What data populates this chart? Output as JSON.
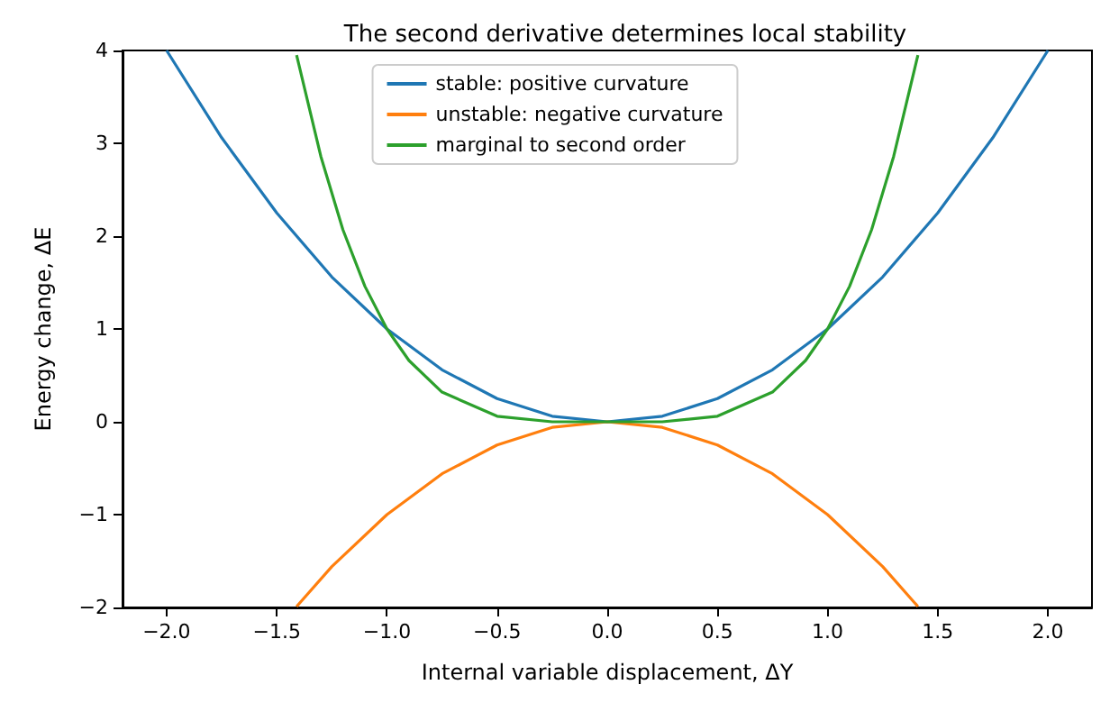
{
  "chart_data": {
    "type": "line",
    "title": "The second derivative determines local stability",
    "xlabel": "Internal variable displacement, ΔY",
    "ylabel": "Energy change, ΔE",
    "series": [
      {
        "name": "stable: positive curvature",
        "color": "#1f77b4",
        "x": [
          -2,
          -1.75,
          -1.5,
          -1.25,
          -1,
          -0.75,
          -0.5,
          -0.25,
          0,
          0.25,
          0.5,
          0.75,
          1,
          1.25,
          1.5,
          1.75,
          2
        ],
        "values": [
          4,
          3.06,
          2.25,
          1.56,
          1,
          0.56,
          0.25,
          0.06,
          0,
          0.06,
          0.25,
          0.56,
          1,
          1.56,
          2.25,
          3.06,
          4
        ]
      },
      {
        "name": "unstable: negative curvature",
        "color": "#ff7f0e",
        "x": [
          -1.41,
          -1.25,
          -1,
          -0.75,
          -0.5,
          -0.25,
          0,
          0.25,
          0.5,
          0.75,
          1,
          1.25,
          1.41
        ],
        "values": [
          -1.99,
          -1.56,
          -1,
          -0.56,
          -0.25,
          -0.06,
          0,
          -0.06,
          -0.25,
          -0.56,
          -1,
          -1.56,
          -1.99
        ]
      },
      {
        "name": "marginal to second order",
        "color": "#2ca02c",
        "x": [
          -1.41,
          -1.3,
          -1.2,
          -1.1,
          -1,
          -0.9,
          -0.75,
          -0.5,
          -0.25,
          0,
          0.25,
          0.5,
          0.75,
          0.9,
          1,
          1.1,
          1.2,
          1.3,
          1.41
        ],
        "values": [
          3.95,
          2.86,
          2.07,
          1.46,
          1,
          0.66,
          0.32,
          0.06,
          0,
          0,
          0,
          0.06,
          0.32,
          0.66,
          1,
          1.46,
          2.07,
          2.86,
          3.95
        ]
      }
    ],
    "xlim": [
      -2.2,
      2.2
    ],
    "ylim": [
      -2,
      4
    ],
    "xticks": [
      {
        "value": -2,
        "label": "−2.0"
      },
      {
        "value": -1.5,
        "label": "−1.5"
      },
      {
        "value": -1,
        "label": "−1.0"
      },
      {
        "value": -0.5,
        "label": "−0.5"
      },
      {
        "value": 0,
        "label": "0.0"
      },
      {
        "value": 0.5,
        "label": "0.5"
      },
      {
        "value": 1,
        "label": "1.0"
      },
      {
        "value": 1.5,
        "label": "1.5"
      },
      {
        "value": 2,
        "label": "2.0"
      }
    ],
    "yticks": [
      {
        "value": -2,
        "label": "−2"
      },
      {
        "value": -1,
        "label": "−1"
      },
      0,
      1,
      2,
      3,
      4
    ],
    "legend": "top",
    "grid": false,
    "marker": "none",
    "line_style": "solid"
  }
}
